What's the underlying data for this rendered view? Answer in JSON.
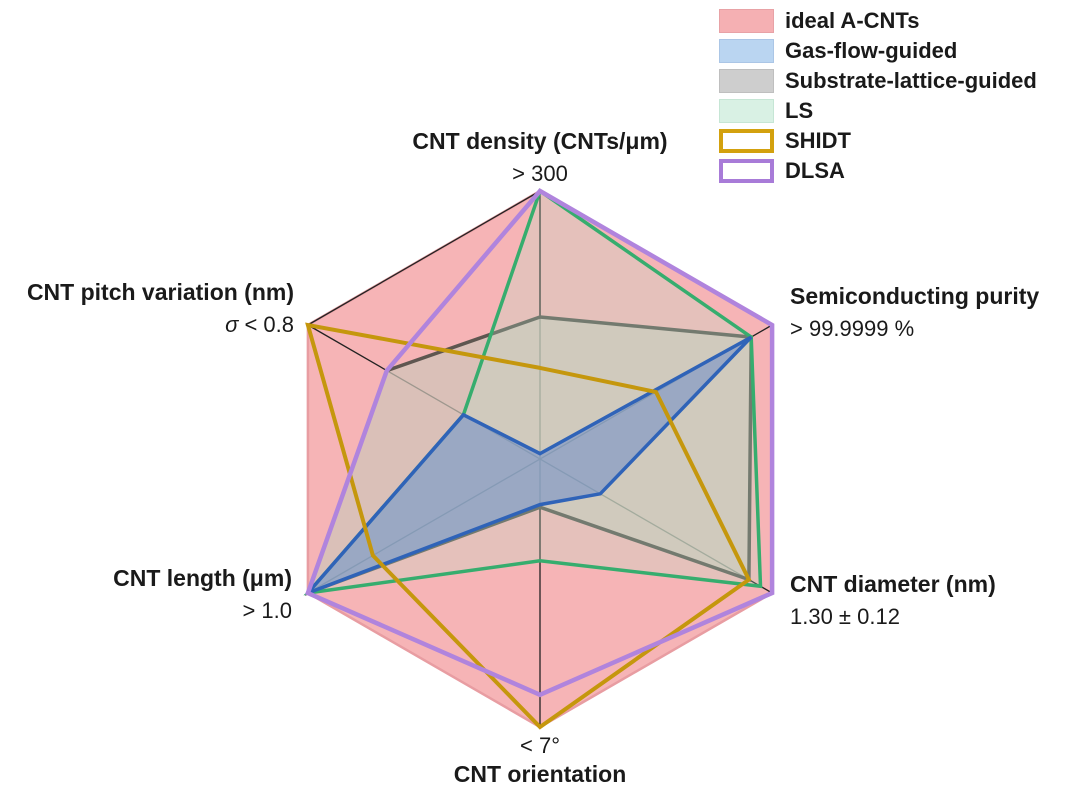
{
  "figure": {
    "background": "#ffffff",
    "frame_color": "#222222"
  },
  "chart_data": {
    "type": "radar",
    "title": "",
    "center": [
      540,
      459
    ],
    "radius": 268,
    "grid": false,
    "legend_position": "top-right",
    "axes": [
      {
        "id": "density",
        "label": "CNT density (CNTs/μm)",
        "value": "> 300",
        "angle_deg": 90,
        "sigma": ""
      },
      {
        "id": "purity",
        "label": "Semiconducting purity",
        "value": "> 99.9999 %",
        "angle_deg": 30,
        "sigma": ""
      },
      {
        "id": "diameter",
        "label": "CNT diameter (nm)",
        "value": "1.30 ± 0.12",
        "angle_deg": -30,
        "sigma": ""
      },
      {
        "id": "orientation",
        "label": "CNT orientation",
        "value": "< 7°",
        "angle_deg": -90,
        "sigma": ""
      },
      {
        "id": "length",
        "label": "CNT length (μm)",
        "value": "> 1.0",
        "angle_deg": -150,
        "sigma": ""
      },
      {
        "id": "pitch",
        "label": "CNT pitch variation (nm)",
        "value": " < 0.8",
        "angle_deg": 150,
        "sigma": "σ"
      }
    ],
    "axis_order_note": "values arrays follow axes order: density, purity, diameter, orientation, length, pitch (fraction of full scale where 1.0 = ideal A-CNTs hexagon corner)",
    "series": [
      {
        "name": "ideal A-CNTs",
        "values": [
          1.0,
          1.0,
          1.0,
          1.0,
          1.0,
          1.0
        ],
        "fill": "#f6b4b6",
        "fill_opacity": 1,
        "stroke": "#e89da2",
        "stroke_width": 2.5,
        "legend_swatch": {
          "fill": "#f5b0b3",
          "stroke": "#e8a2a6",
          "border_px": 1
        }
      },
      {
        "name": "Gas-flow-guided",
        "values": [
          0.02,
          0.91,
          0.26,
          0.17,
          1.0,
          0.33
        ],
        "fill": "#6e8cc8",
        "fill_opacity": 0.55,
        "stroke": "#2f63b8",
        "stroke_width": 3.5,
        "legend_swatch": {
          "fill": "#bad5f1",
          "stroke": "#abc6e6",
          "border_px": 1
        }
      },
      {
        "name": "Substrate-lattice-guided",
        "values": [
          0.53,
          0.91,
          0.9,
          0.18,
          1.0,
          0.66
        ],
        "fill": "#cfc5b8",
        "fill_opacity": 0.72,
        "stroke": "#5e5650",
        "stroke_width": 3.5,
        "legend_swatch": {
          "fill": "#cecece",
          "stroke": "#bfbfbf",
          "border_px": 1
        }
      },
      {
        "name": "LS",
        "values": [
          1.0,
          0.91,
          0.95,
          0.38,
          1.0,
          0.33
        ],
        "fill": "#b4e6cc",
        "fill_opacity": 0.25,
        "stroke": "#36ad6e",
        "stroke_width": 3.5,
        "legend_swatch": {
          "fill": "#d9f1e4",
          "stroke": "#c6e6d5",
          "border_px": 1
        }
      },
      {
        "name": "SHIDT",
        "values": [
          0.34,
          0.5,
          0.9,
          1.0,
          0.72,
          1.0
        ],
        "fill": "none",
        "fill_opacity": 0,
        "stroke": "#c5970d",
        "stroke_width": 4,
        "legend_swatch": {
          "fill": "#ffffff",
          "stroke": "#d3a10e",
          "border_px": 4
        }
      },
      {
        "name": "DLSA",
        "values": [
          1.0,
          1.0,
          1.0,
          0.88,
          1.0,
          0.66
        ],
        "fill": "none",
        "fill_opacity": 0,
        "stroke": "#b084dd",
        "stroke_width": 4.5,
        "legend_swatch": {
          "fill": "#ffffff",
          "stroke": "#a87bd8",
          "border_px": 4
        }
      }
    ],
    "draw_order": [
      "ideal A-CNTs",
      "__frame__",
      "Substrate-lattice-guided",
      "LS",
      "Gas-flow-guided",
      "SHIDT",
      "DLSA"
    ],
    "frame": {
      "color": "#222222",
      "width": 1.3,
      "top_edges": [
        [
          5,
          0
        ],
        [
          0,
          1
        ]
      ],
      "diagonals": [
        [
          5,
          2
        ],
        [
          4,
          1
        ],
        [
          0,
          3
        ]
      ]
    }
  }
}
